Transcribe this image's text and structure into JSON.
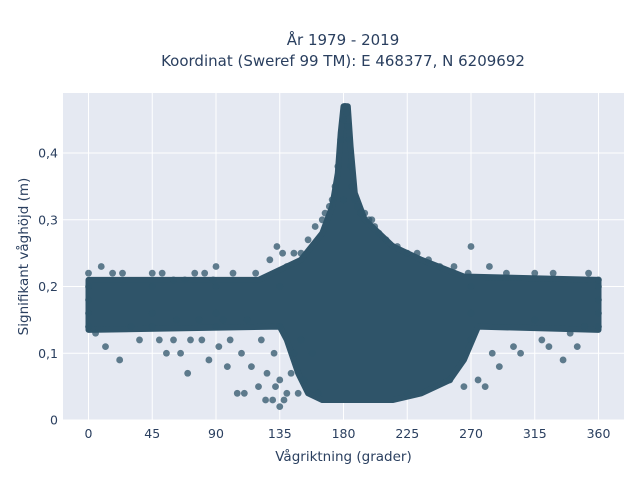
{
  "chart_data": {
    "type": "scatter",
    "title": [
      "År 1979 - 2019",
      "Koordinat (Sweref 99 TM): E 468377, N 6209692"
    ],
    "xlabel": "Vågriktning (grader)",
    "ylabel": "Signifikant våghöjd (m)",
    "xlim": [
      -18,
      378
    ],
    "ylim": [
      0,
      0.49
    ],
    "x_ticks": [
      0,
      45,
      90,
      135,
      180,
      225,
      270,
      315,
      360
    ],
    "x_tick_labels": [
      "0",
      "45",
      "90",
      "135",
      "180",
      "225",
      "270",
      "315",
      "360"
    ],
    "y_ticks": [
      0,
      0.1,
      0.2,
      0.3,
      0.4
    ],
    "y_tick_labels": [
      "0",
      "0,1",
      "0,2",
      "0,3",
      "0,4"
    ],
    "grid": true,
    "background_color": "#e5e9f2",
    "marker_color": "#2f5469",
    "series": [
      {
        "points": [
          [
            0,
            0.14
          ],
          [
            0,
            0.16
          ],
          [
            0,
            0.18
          ],
          [
            0,
            0.2
          ],
          [
            0,
            0.22
          ],
          [
            5,
            0.13
          ],
          [
            9,
            0.23
          ],
          [
            12,
            0.11
          ],
          [
            17,
            0.22
          ],
          [
            22,
            0.09
          ],
          [
            24,
            0.22
          ],
          [
            30,
            0.14
          ],
          [
            36,
            0.12
          ],
          [
            45,
            0.14
          ],
          [
            45,
            0.16
          ],
          [
            45,
            0.2
          ],
          [
            45,
            0.22
          ],
          [
            50,
            0.12
          ],
          [
            52,
            0.22
          ],
          [
            55,
            0.1
          ],
          [
            60,
            0.12
          ],
          [
            60,
            0.21
          ],
          [
            62,
            0.15
          ],
          [
            65,
            0.1
          ],
          [
            68,
            0.21
          ],
          [
            70,
            0.07
          ],
          [
            72,
            0.12
          ],
          [
            75,
            0.22
          ],
          [
            78,
            0.15
          ],
          [
            80,
            0.12
          ],
          [
            82,
            0.22
          ],
          [
            85,
            0.09
          ],
          [
            88,
            0.21
          ],
          [
            90,
            0.14
          ],
          [
            90,
            0.16
          ],
          [
            90,
            0.2
          ],
          [
            90,
            0.23
          ],
          [
            92,
            0.11
          ],
          [
            95,
            0.15
          ],
          [
            98,
            0.08
          ],
          [
            100,
            0.12
          ],
          [
            102,
            0.22
          ],
          [
            105,
            0.04
          ],
          [
            108,
            0.1
          ],
          [
            110,
            0.04
          ],
          [
            112,
            0.15
          ],
          [
            115,
            0.08
          ],
          [
            118,
            0.22
          ],
          [
            120,
            0.05
          ],
          [
            122,
            0.12
          ],
          [
            125,
            0.03
          ],
          [
            126,
            0.07
          ],
          [
            128,
            0.24
          ],
          [
            130,
            0.03
          ],
          [
            131,
            0.1
          ],
          [
            132,
            0.05
          ],
          [
            133,
            0.26
          ],
          [
            135,
            0.02
          ],
          [
            135,
            0.06
          ],
          [
            135,
            0.14
          ],
          [
            135,
            0.2
          ],
          [
            137,
            0.25
          ],
          [
            138,
            0.03
          ],
          [
            140,
            0.04
          ],
          [
            140,
            0.23
          ],
          [
            143,
            0.07
          ],
          [
            145,
            0.1
          ],
          [
            145,
            0.25
          ],
          [
            148,
            0.04
          ],
          [
            150,
            0.12
          ],
          [
            150,
            0.25
          ],
          [
            152,
            0.06
          ],
          [
            155,
            0.27
          ],
          [
            158,
            0.1
          ],
          [
            160,
            0.29
          ],
          [
            162,
            0.04
          ],
          [
            165,
            0.3
          ],
          [
            167,
            0.31
          ],
          [
            170,
            0.32
          ],
          [
            172,
            0.33
          ],
          [
            174,
            0.35
          ],
          [
            176,
            0.38
          ],
          [
            178,
            0.42
          ],
          [
            180,
            0.45
          ],
          [
            180,
            0.33
          ],
          [
            181,
            0.47
          ],
          [
            182,
            0.46
          ],
          [
            183,
            0.44
          ],
          [
            184,
            0.42
          ],
          [
            185,
            0.38
          ],
          [
            186,
            0.35
          ],
          [
            188,
            0.33
          ],
          [
            190,
            0.32
          ],
          [
            192,
            0.31
          ],
          [
            195,
            0.31
          ],
          [
            198,
            0.3
          ],
          [
            200,
            0.3
          ],
          [
            202,
            0.29
          ],
          [
            205,
            0.28
          ],
          [
            210,
            0.27
          ],
          [
            215,
            0.26
          ],
          [
            218,
            0.26
          ],
          [
            225,
            0.04
          ],
          [
            225,
            0.25
          ],
          [
            232,
            0.25
          ],
          [
            240,
            0.24
          ],
          [
            248,
            0.23
          ],
          [
            255,
            0.06
          ],
          [
            258,
            0.23
          ],
          [
            265,
            0.05
          ],
          [
            268,
            0.22
          ],
          [
            270,
            0.12
          ],
          [
            270,
            0.16
          ],
          [
            270,
            0.2
          ],
          [
            270,
            0.26
          ],
          [
            275,
            0.06
          ],
          [
            280,
            0.05
          ],
          [
            283,
            0.23
          ],
          [
            285,
            0.1
          ],
          [
            290,
            0.08
          ],
          [
            295,
            0.22
          ],
          [
            300,
            0.11
          ],
          [
            305,
            0.1
          ],
          [
            315,
            0.15
          ],
          [
            315,
            0.22
          ],
          [
            320,
            0.12
          ],
          [
            325,
            0.11
          ],
          [
            328,
            0.22
          ],
          [
            335,
            0.09
          ],
          [
            340,
            0.13
          ],
          [
            345,
            0.11
          ],
          [
            350,
            0.14
          ],
          [
            353,
            0.22
          ],
          [
            360,
            0.14
          ],
          [
            360,
            0.16
          ],
          [
            360,
            0.18
          ],
          [
            360,
            0.2
          ],
          [
            360,
            0.21
          ]
        ]
      }
    ]
  }
}
